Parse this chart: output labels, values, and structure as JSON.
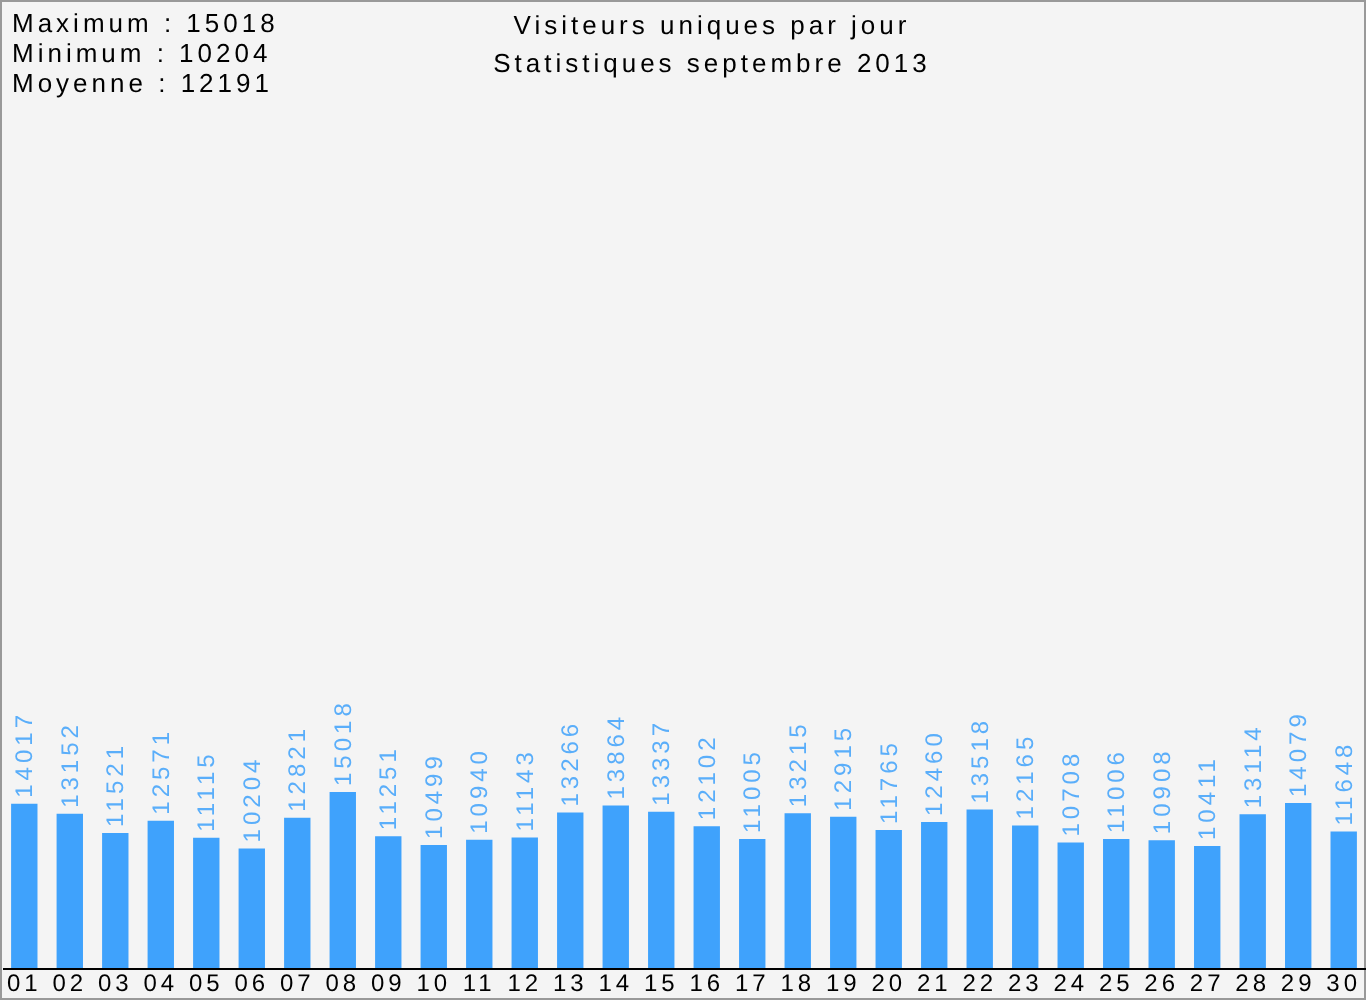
{
  "chart_data": {
    "type": "bar",
    "title": "Visiteurs uniques par jour",
    "subtitle": "Statistiques septembre 2013",
    "annotations": [
      "Maximum : 15018",
      "Minimum : 10204",
      "Moyenne : 12191"
    ],
    "categories": [
      "01",
      "02",
      "03",
      "04",
      "05",
      "06",
      "07",
      "08",
      "09",
      "10",
      "11",
      "12",
      "13",
      "14",
      "15",
      "16",
      "17",
      "18",
      "19",
      "20",
      "21",
      "22",
      "23",
      "24",
      "25",
      "26",
      "27",
      "28",
      "29",
      "30"
    ],
    "values": [
      14017,
      13152,
      11521,
      12571,
      11115,
      10204,
      12821,
      15018,
      11251,
      10499,
      10940,
      11143,
      13266,
      13864,
      13337,
      12102,
      11005,
      13215,
      12915,
      11765,
      12460,
      13518,
      12165,
      10708,
      11006,
      10908,
      10411,
      13114,
      14079,
      11648
    ],
    "color": "#3fa2fc",
    "tick_labels": "x",
    "grid": false,
    "data_labels": true
  }
}
